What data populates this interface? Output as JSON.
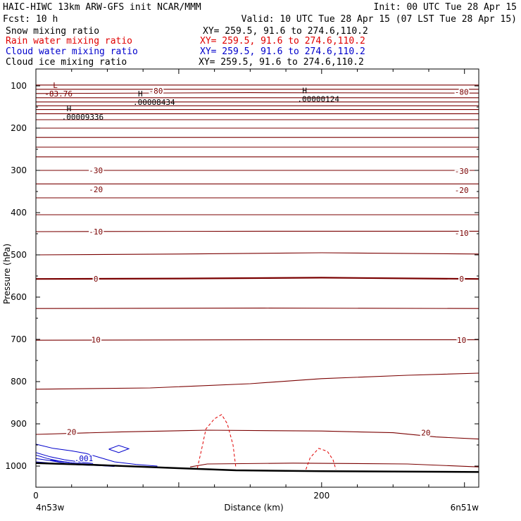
{
  "header": {
    "title_left": "HAIC-HIWC 13km ARW-GFS init   NCAR/MMM",
    "init": "Init: 00 UTC Tue 28 Apr 15",
    "fcst": "Fcst:   10 h",
    "valid": "Valid: 10 UTC Tue 28 Apr 15 (07 LST Tue 28 Apr 15)"
  },
  "fields": [
    {
      "name": "Snow mixing ratio",
      "xy": "XY= 259.5, 91.6 to 274.6,110.2",
      "color": "#000000"
    },
    {
      "name": "Rain water mixing ratio",
      "xy": "XY= 259.5, 91.6 to 274.6,110.2",
      "color": "#e00000"
    },
    {
      "name": "Cloud water mixing ratio",
      "xy": "XY= 259.5, 91.6 to 274.6,110.2",
      "color": "#0000cc"
    },
    {
      "name": "Cloud ice mixing ratio",
      "xy": "XY= 259.5, 91.6 to 274.6,110.2",
      "color": "#000000"
    }
  ],
  "chart_data": {
    "type": "line",
    "xlabel": "Distance (km)",
    "ylabel": "Pressure (hPa)",
    "xlim": [
      0,
      310
    ],
    "ylim": [
      1050,
      60
    ],
    "x_ticks": [
      0,
      200
    ],
    "y_ticks": [
      100,
      200,
      300,
      400,
      500,
      600,
      700,
      800,
      900,
      1000
    ],
    "x_endpoints": {
      "left": "4n53w",
      "right": "6n51w"
    },
    "theta_lines": {
      "color": "#7a0000",
      "levels": [
        {
          "p": [
            [
              0,
              98
            ],
            [
              150,
              98
            ],
            [
              310,
              98
            ]
          ]
        },
        {
          "p": [
            [
              0,
              108
            ],
            [
              160,
              108
            ],
            [
              310,
              108
            ]
          ]
        },
        {
          "p": [
            [
              0,
              118
            ],
            [
              150,
              116
            ],
            [
              310,
              117
            ]
          ]
        },
        {
          "p": [
            [
              0,
              128
            ],
            [
              160,
              128
            ],
            [
              310,
              128
            ]
          ]
        },
        {
          "p": [
            [
              0,
              138
            ],
            [
              160,
              138
            ],
            [
              310,
              138
            ]
          ]
        },
        {
          "p": [
            [
              0,
              147
            ],
            [
              160,
              147
            ],
            [
              310,
              147
            ]
          ]
        },
        {
          "p": [
            [
              0,
              156
            ],
            [
              160,
              156
            ],
            [
              310,
              156
            ]
          ]
        },
        {
          "p": [
            [
              0,
              166
            ],
            [
              160,
              166
            ],
            [
              310,
              166
            ]
          ]
        },
        {
          "p": [
            [
              0,
              180
            ],
            [
              160,
              180
            ],
            [
              310,
              180
            ]
          ]
        },
        {
          "p": [
            [
              0,
              200
            ],
            [
              160,
              200
            ],
            [
              310,
              200
            ]
          ]
        },
        {
          "p": [
            [
              0,
              222
            ],
            [
              160,
              222
            ],
            [
              310,
              222
            ]
          ]
        },
        {
          "p": [
            [
              0,
              245
            ],
            [
              160,
              245
            ],
            [
              310,
              245
            ]
          ]
        },
        {
          "p": [
            [
              0,
              268
            ],
            [
              160,
              268
            ],
            [
              310,
              268
            ]
          ]
        },
        {
          "p": [
            [
              0,
              300
            ],
            [
              160,
              300
            ],
            [
              310,
              300
            ]
          ]
        },
        {
          "p": [
            [
              0,
              332
            ],
            [
              160,
              332
            ],
            [
              310,
              332
            ]
          ]
        },
        {
          "p": [
            [
              0,
              365
            ],
            [
              160,
              365
            ],
            [
              310,
              365
            ]
          ]
        },
        {
          "p": [
            [
              0,
              405
            ],
            [
              160,
              405
            ],
            [
              310,
              405
            ]
          ]
        },
        {
          "p": [
            [
              0,
              445
            ],
            [
              160,
              444
            ],
            [
              310,
              444
            ]
          ]
        },
        {
          "p": [
            [
              0,
              500
            ],
            [
              100,
              498
            ],
            [
              200,
              495
            ],
            [
              310,
              498
            ]
          ]
        },
        {
          "p": [
            [
              0,
              557
            ],
            [
              100,
              556
            ],
            [
              200,
              554
            ],
            [
              310,
              557
            ]
          ],
          "bold": true
        },
        {
          "p": [
            [
              0,
              627
            ],
            [
              160,
              626
            ],
            [
              310,
              627
            ]
          ]
        },
        {
          "p": [
            [
              0,
              702
            ],
            [
              160,
              701
            ],
            [
              310,
              701
            ]
          ]
        },
        {
          "p": [
            [
              0,
              818
            ],
            [
              80,
              815
            ],
            [
              150,
              805
            ],
            [
              200,
              793
            ],
            [
              260,
              785
            ],
            [
              310,
              780
            ]
          ]
        },
        {
          "p": [
            [
              0,
              925
            ],
            [
              60,
              919
            ],
            [
              120,
              915
            ],
            [
              200,
              917
            ],
            [
              250,
              921
            ],
            [
              280,
              931
            ],
            [
              310,
              936
            ]
          ]
        },
        {
          "p": [
            [
              108,
              1002
            ],
            [
              120,
              995
            ],
            [
              180,
              993
            ],
            [
              260,
              995
            ],
            [
              310,
              1002
            ]
          ]
        }
      ],
      "labels": [
        {
          "text": "-80",
          "x": 84,
          "p": 112
        },
        {
          "text": "-80",
          "x": 298,
          "p": 114
        },
        {
          "text": "-30",
          "x": 42,
          "p": 300
        },
        {
          "text": "-30",
          "x": 298,
          "p": 302
        },
        {
          "text": "-20",
          "x": 42,
          "p": 345
        },
        {
          "text": "-20",
          "x": 298,
          "p": 347
        },
        {
          "text": "-10",
          "x": 42,
          "p": 445
        },
        {
          "text": "-10",
          "x": 298,
          "p": 448
        },
        {
          "text": "0",
          "x": 42,
          "p": 557
        },
        {
          "text": "0",
          "x": 298,
          "p": 557
        },
        {
          "text": "10",
          "x": 42,
          "p": 701
        },
        {
          "text": "10",
          "x": 298,
          "p": 702
        },
        {
          "text": "20",
          "x": 25,
          "p": 919
        },
        {
          "text": "20",
          "x": 273,
          "p": 921
        }
      ],
      "extrema": [
        {
          "mark": "L",
          "value": "-83.76",
          "x": 9,
          "p": 83
        }
      ]
    },
    "snow_extrema": [
      {
        "mark": "H",
        "value": ".00008434",
        "x": 70,
        "p": 128
      },
      {
        "mark": "H",
        "value": ".00000124",
        "x": 185,
        "p": 121
      },
      {
        "mark": "H",
        "value": ".00009336",
        "x": 20,
        "p": 163
      }
    ],
    "rain_water": {
      "color": "#e00000",
      "contours": [
        {
          "p": [
            [
              113,
              1005
            ],
            [
              116,
              960
            ],
            [
              119,
              912
            ],
            [
              125,
              888
            ],
            [
              130,
              878
            ],
            [
              134,
              900
            ],
            [
              138,
              950
            ],
            [
              140,
              1005
            ]
          ]
        },
        {
          "p": [
            [
              189,
              1008
            ],
            [
              192,
              980
            ],
            [
              198,
              958
            ],
            [
              204,
              965
            ],
            [
              208,
              985
            ],
            [
              210,
              1008
            ]
          ]
        }
      ]
    },
    "cloud_water": {
      "color": "#0000cc",
      "contours": [
        {
          "p": [
            [
              0,
              948
            ],
            [
              12,
              958
            ],
            [
              25,
              964
            ],
            [
              35,
              970
            ],
            [
              45,
              980
            ],
            [
              55,
              990
            ],
            [
              70,
              996
            ],
            [
              85,
              1000
            ]
          ]
        },
        {
          "p": [
            [
              0,
              968
            ],
            [
              10,
              978
            ],
            [
              20,
              985
            ],
            [
              30,
              990
            ],
            [
              40,
              994
            ]
          ]
        },
        {
          "p": [
            [
              0,
              974
            ],
            [
              8,
              982
            ],
            [
              16,
              988
            ],
            [
              25,
              992
            ]
          ]
        },
        {
          "p": [
            [
              10,
              986
            ],
            [
              25,
              992
            ],
            [
              40,
              996
            ],
            [
              60,
              999
            ]
          ]
        },
        {
          "p": [
            [
              0,
              982
            ],
            [
              10,
              987
            ],
            [
              20,
              993
            ],
            [
              30,
              996
            ]
          ]
        },
        {
          "p": [
            [
              51,
              960
            ],
            [
              58,
              951
            ],
            [
              65,
              959
            ],
            [
              58,
              968
            ],
            [
              51,
              960
            ]
          ]
        },
        {
          "p": [
            [
              0,
              990
            ],
            [
              15,
              994
            ],
            [
              30,
              997
            ],
            [
              45,
              999
            ],
            [
              55,
              1001
            ]
          ]
        }
      ],
      "labels": [
        {
          "text": ".001",
          "x": 27,
          "p": 982
        }
      ]
    },
    "terrain": {
      "p": [
        [
          0,
          993
        ],
        [
          40,
          997
        ],
        [
          100,
          1005
        ],
        [
          140,
          1010
        ],
        [
          200,
          1012
        ],
        [
          250,
          1013
        ],
        [
          310,
          1014
        ]
      ]
    }
  }
}
